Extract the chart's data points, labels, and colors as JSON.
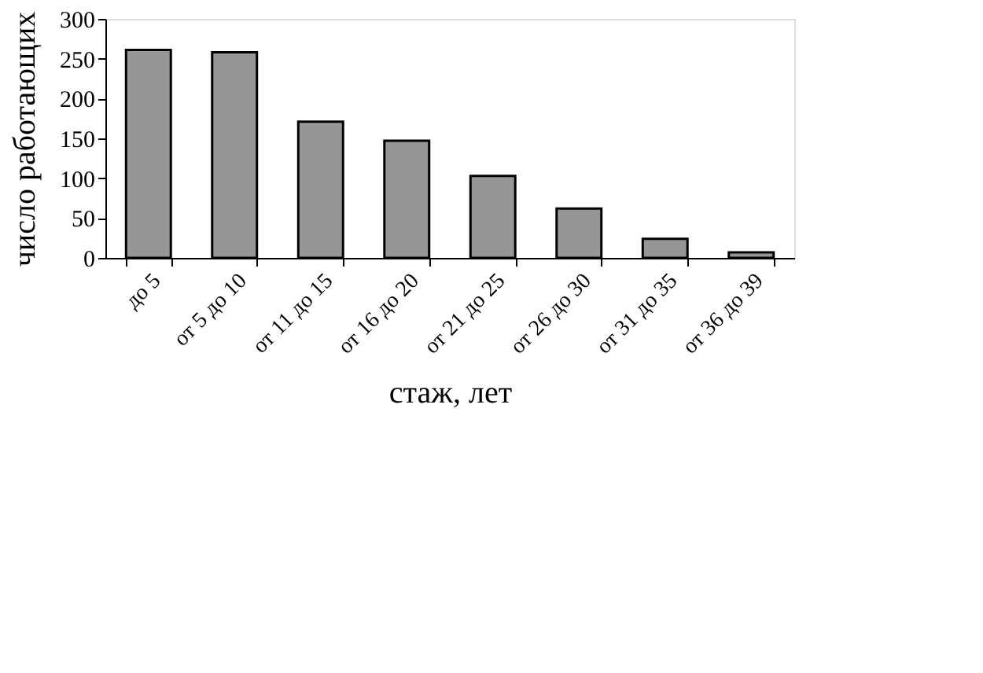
{
  "chart_data": {
    "type": "bar",
    "categories": [
      "до 5",
      "от 5 до 10",
      "от 11 до 15",
      "от 16 до 20",
      "от 21 до 25",
      "от 26 до 30",
      "от 31 до 35",
      "от 36 до 39"
    ],
    "values": [
      261,
      258,
      171,
      147,
      103,
      62,
      24,
      7
    ],
    "color": "#969696",
    "xlabel": "стаж, лет",
    "ylabel": "число работающих",
    "ylim": [
      0,
      300
    ],
    "yticks": [
      0,
      50,
      100,
      150,
      200,
      250,
      300
    ],
    "grid": false
  }
}
